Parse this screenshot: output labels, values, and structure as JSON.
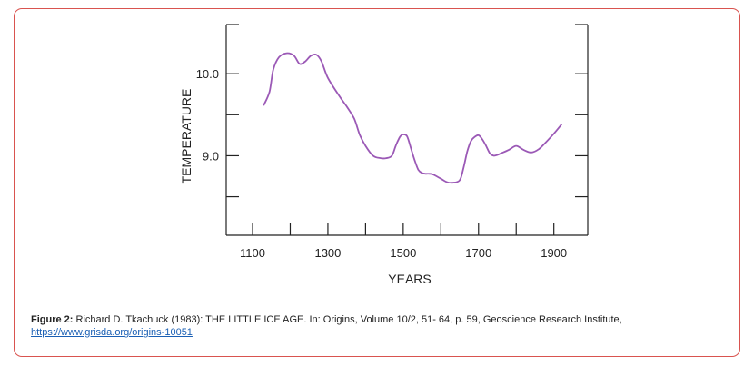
{
  "chart_data": {
    "type": "line",
    "xlabel": "YEARS",
    "ylabel": "TEMPERATURE",
    "xlim": [
      1030,
      1990
    ],
    "ylim": [
      8.03,
      10.6
    ],
    "x_ticks": [
      1100,
      1300,
      1500,
      1700,
      1900
    ],
    "x_minor_ticks": [
      1200,
      1400,
      1600,
      1800
    ],
    "y_ticks": [
      10.0,
      9.0
    ],
    "y_minor_ticks": [
      9.5,
      8.5
    ],
    "grid": false,
    "series": [
      {
        "color": "#9b59b6",
        "x": [
          1130,
          1145,
          1155,
          1170,
          1190,
          1210,
          1225,
          1240,
          1255,
          1270,
          1283,
          1300,
          1330,
          1350,
          1370,
          1385,
          1400,
          1420,
          1440,
          1455,
          1470,
          1480,
          1490,
          1495,
          1500,
          1510,
          1520,
          1530,
          1540,
          1550,
          1560,
          1570,
          1580,
          1600,
          1615,
          1630,
          1650,
          1660,
          1670,
          1680,
          1690,
          1700,
          1710,
          1720,
          1730,
          1740,
          1750,
          1760,
          1780,
          1800,
          1820,
          1840,
          1860,
          1880,
          1900,
          1920
        ],
        "y": [
          9.62,
          9.78,
          10.05,
          10.2,
          10.25,
          10.22,
          10.12,
          10.15,
          10.22,
          10.23,
          10.15,
          9.95,
          9.73,
          9.6,
          9.45,
          9.25,
          9.12,
          9.0,
          8.97,
          8.97,
          9.0,
          9.12,
          9.22,
          9.25,
          9.26,
          9.24,
          9.1,
          8.95,
          8.83,
          8.79,
          8.78,
          8.78,
          8.77,
          8.72,
          8.68,
          8.67,
          8.7,
          8.85,
          9.05,
          9.18,
          9.23,
          9.25,
          9.2,
          9.12,
          9.03,
          9.0,
          9.01,
          9.03,
          9.07,
          9.12,
          9.07,
          9.04,
          9.08,
          9.17,
          9.27,
          9.38
        ]
      }
    ]
  },
  "caption": {
    "label": "Figure 2:",
    "text": " Richard D. Tkachuck (1983): THE LITTLE ICE AGE. In: Origins, Volume 10/2, 51- 64, p. 59, Geoscience Research Institute,",
    "link": "https://www.grisda.org/origins-10051"
  },
  "colors": {
    "frame_border": "#d9534f",
    "line": "#9b59b6",
    "axis": "#222222"
  }
}
